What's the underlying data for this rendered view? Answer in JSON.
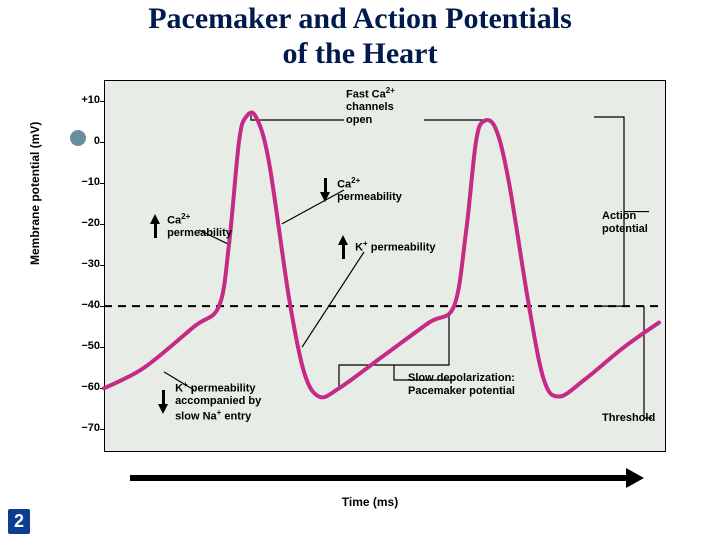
{
  "slide": {
    "title_line1": "Pacemaker and Action Potentials",
    "title_line2": "of the Heart",
    "page_number": "2",
    "bullet_color": "#6b8e9f",
    "title_color": "#001a4d"
  },
  "chart": {
    "type": "line",
    "background_color": "#e7ece7",
    "curve_color": "#c42a86",
    "curve_width": 4,
    "threshold": -40,
    "ylabel": "Membrane potential (mV)",
    "xlabel": "Time (ms)",
    "ylim": [
      -75,
      15
    ],
    "yticks": [
      10,
      0,
      -10,
      -20,
      -30,
      -40,
      -50,
      -60,
      -70
    ],
    "ytick_labels": [
      "+10",
      "0",
      "−10",
      "−20",
      "−30",
      "−40",
      "−50",
      "−60",
      "−70"
    ],
    "curve_points": [
      [
        0,
        -60
      ],
      [
        40,
        -55
      ],
      [
        90,
        -45
      ],
      [
        115,
        -40
      ],
      [
        125,
        -25
      ],
      [
        135,
        0
      ],
      [
        142,
        6
      ],
      [
        152,
        6
      ],
      [
        165,
        -5
      ],
      [
        185,
        -38
      ],
      [
        200,
        -56
      ],
      [
        215,
        -62
      ],
      [
        235,
        -60
      ],
      [
        280,
        -52
      ],
      [
        325,
        -44
      ],
      [
        350,
        -40
      ],
      [
        362,
        -22
      ],
      [
        372,
        0
      ],
      [
        380,
        5
      ],
      [
        392,
        3
      ],
      [
        405,
        -10
      ],
      [
        425,
        -40
      ],
      [
        440,
        -58
      ],
      [
        455,
        -62
      ],
      [
        480,
        -58
      ],
      [
        520,
        -50
      ],
      [
        555,
        -44
      ]
    ],
    "annotations": {
      "fast_ca": "Fast Ca²⁺\nchannels\nopen",
      "ca_perm_up": "Ca²⁺\npermeability",
      "ca_perm_down": "Ca²⁺\npermeability",
      "k_perm_up": "K⁺ permeability",
      "k_perm_down_slow_na": "K⁺ permeability\naccompanied by\nslow Na⁺ entry",
      "action_pot": "Action\npotential",
      "pacemaker": "Slow depolarization:\nPacemaker potential",
      "threshold_label": "Threshold"
    }
  }
}
